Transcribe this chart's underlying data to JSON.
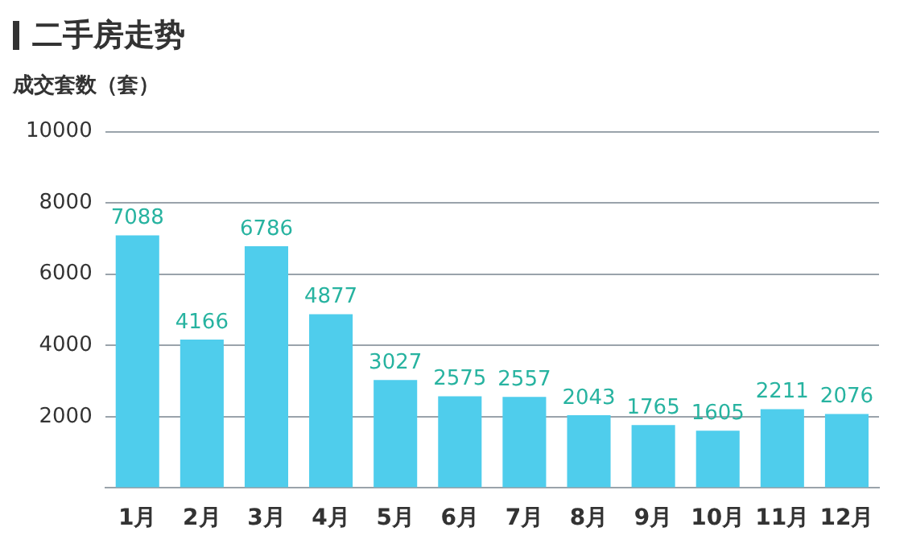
{
  "chart_data": {
    "type": "bar",
    "title": "二手房走势",
    "ylabel": "成交套数（套）",
    "categories": [
      "1月",
      "2月",
      "3月",
      "4月",
      "5月",
      "6月",
      "7月",
      "8月",
      "9月",
      "10月",
      "11月",
      "12月"
    ],
    "values": [
      7088,
      4166,
      6786,
      4877,
      3027,
      2575,
      2557,
      2043,
      1765,
      1605,
      2211,
      2076
    ],
    "color": "#4fcdec",
    "ylim": [
      0,
      10000
    ],
    "yticks": [
      {
        "value": 0,
        "label": null
      },
      2000,
      4000,
      6000,
      8000,
      10000
    ],
    "grid": "y",
    "data_labels": true
  }
}
